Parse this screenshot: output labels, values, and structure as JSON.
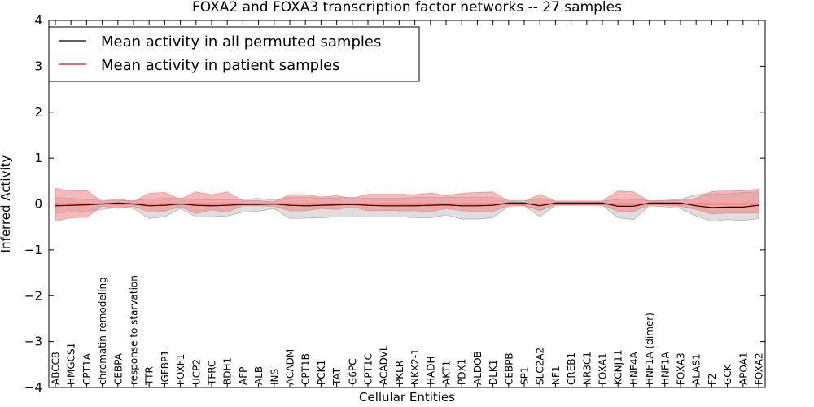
{
  "chart_data": {
    "type": "line",
    "title": "FOXA2 and FOXA3 transcription factor networks -- 27 samples",
    "xlabel": "Cellular Entities",
    "ylabel": "Inferred Activity",
    "ylim": [
      -4,
      4
    ],
    "yticks": [
      "−4",
      "−3",
      "−2",
      "−1",
      "0",
      "1",
      "2",
      "3",
      "4"
    ],
    "grid": false,
    "legend_position": "top-left",
    "categories": [
      "ABCC8",
      "HMGCS1",
      "CPT1A",
      "chromatin remodeling",
      "CEBPA",
      "response to starvation",
      "TTR",
      "IGFBP1",
      "FOXF1",
      "UCP2",
      "TFRC",
      "BDH1",
      "AFP",
      "ALB",
      "INS",
      "ACADM",
      "CPT1B",
      "PCK1",
      "TAT",
      "G6PC",
      "CPT1C",
      "ACADVL",
      "PKLR",
      "NKX2-1",
      "HADH",
      "AKT1",
      "PDX1",
      "ALDOB",
      "DLK1",
      "CEBPB",
      "SP1",
      "SLC2A2",
      "NF1",
      "CREB1",
      "NR3C1",
      "FOXA1",
      "KCNJ11",
      "HNF4A",
      "HNF1A (dimer)",
      "HNF1A",
      "FOXA3",
      "ALAS1",
      "F2",
      "GCK",
      "APOA1",
      "FOXA2"
    ],
    "series": [
      {
        "name": "Mean activity in all permuted samples",
        "color": "#000000",
        "band_color": "#a0a0a0",
        "values": [
          -0.04,
          -0.03,
          -0.02,
          0.0,
          0.02,
          0.0,
          -0.04,
          -0.03,
          0.0,
          -0.03,
          -0.04,
          -0.03,
          -0.01,
          -0.01,
          0.0,
          -0.03,
          -0.04,
          -0.03,
          -0.02,
          -0.01,
          -0.03,
          -0.04,
          -0.04,
          -0.04,
          -0.03,
          -0.02,
          -0.04,
          -0.04,
          -0.03,
          0.02,
          0.02,
          -0.04,
          0.02,
          0.02,
          0.02,
          0.02,
          -0.05,
          -0.05,
          0.02,
          0.02,
          0.02,
          -0.04,
          -0.08,
          -0.07,
          -0.07,
          -0.03
        ],
        "upper": [
          0.14,
          0.12,
          0.1,
          0.08,
          0.08,
          0.07,
          0.11,
          0.12,
          0.12,
          0.1,
          0.09,
          0.09,
          0.1,
          0.12,
          0.08,
          0.14,
          0.14,
          0.13,
          0.13,
          0.14,
          0.12,
          0.12,
          0.12,
          0.14,
          0.14,
          0.14,
          0.14,
          0.14,
          0.14,
          0.08,
          0.07,
          0.12,
          0.06,
          0.06,
          0.06,
          0.06,
          0.1,
          0.1,
          0.07,
          0.08,
          0.1,
          0.2,
          0.22,
          0.22,
          0.25,
          0.26
        ],
        "lower": [
          -0.2,
          -0.18,
          -0.16,
          -0.12,
          -0.08,
          -0.1,
          -0.32,
          -0.28,
          -0.1,
          -0.28,
          -0.28,
          -0.26,
          -0.18,
          -0.16,
          -0.1,
          -0.32,
          -0.31,
          -0.3,
          -0.28,
          -0.28,
          -0.28,
          -0.28,
          -0.28,
          -0.3,
          -0.3,
          -0.24,
          -0.33,
          -0.33,
          -0.3,
          -0.05,
          -0.04,
          -0.28,
          -0.03,
          -0.03,
          -0.03,
          -0.03,
          -0.3,
          -0.34,
          -0.04,
          -0.06,
          -0.1,
          -0.26,
          -0.38,
          -0.34,
          -0.36,
          -0.32
        ]
      },
      {
        "name": "Mean activity in patient samples",
        "color": "#ff0000",
        "band_color": "#f08080",
        "values": [
          0.0,
          0.0,
          0.0,
          0.0,
          0.0,
          0.0,
          0.0,
          0.0,
          0.0,
          0.0,
          0.0,
          0.0,
          0.0,
          0.0,
          0.0,
          0.0,
          0.0,
          0.0,
          0.0,
          0.0,
          0.0,
          0.0,
          0.0,
          0.0,
          0.0,
          0.0,
          0.0,
          0.0,
          0.0,
          0.0,
          0.0,
          0.0,
          0.0,
          0.0,
          0.0,
          0.0,
          0.0,
          0.0,
          0.0,
          0.0,
          0.0,
          0.0,
          0.0,
          0.0,
          0.0,
          0.0
        ],
        "upper": [
          0.34,
          0.28,
          0.29,
          0.05,
          0.11,
          0.05,
          0.23,
          0.25,
          0.1,
          0.26,
          0.2,
          0.26,
          0.07,
          0.07,
          0.05,
          0.2,
          0.2,
          0.15,
          0.18,
          0.12,
          0.21,
          0.21,
          0.21,
          0.2,
          0.24,
          0.18,
          0.23,
          0.25,
          0.26,
          0.06,
          0.04,
          0.21,
          0.06,
          0.06,
          0.06,
          0.06,
          0.28,
          0.26,
          0.06,
          0.07,
          0.08,
          0.12,
          0.27,
          0.28,
          0.29,
          0.32
        ],
        "lower": [
          -0.38,
          -0.3,
          -0.29,
          -0.05,
          -0.1,
          -0.05,
          -0.18,
          -0.16,
          -0.06,
          -0.21,
          -0.13,
          -0.18,
          -0.04,
          -0.04,
          -0.05,
          -0.15,
          -0.15,
          -0.1,
          -0.12,
          -0.06,
          -0.15,
          -0.14,
          -0.15,
          -0.15,
          -0.17,
          -0.1,
          -0.15,
          -0.17,
          -0.17,
          -0.03,
          -0.03,
          -0.15,
          -0.02,
          -0.02,
          -0.02,
          -0.02,
          -0.16,
          -0.17,
          -0.02,
          -0.03,
          -0.05,
          -0.12,
          -0.22,
          -0.2,
          -0.2,
          -0.2
        ]
      }
    ],
    "baseline": {
      "y": 0,
      "style": "dotted",
      "color": "#000000"
    }
  }
}
